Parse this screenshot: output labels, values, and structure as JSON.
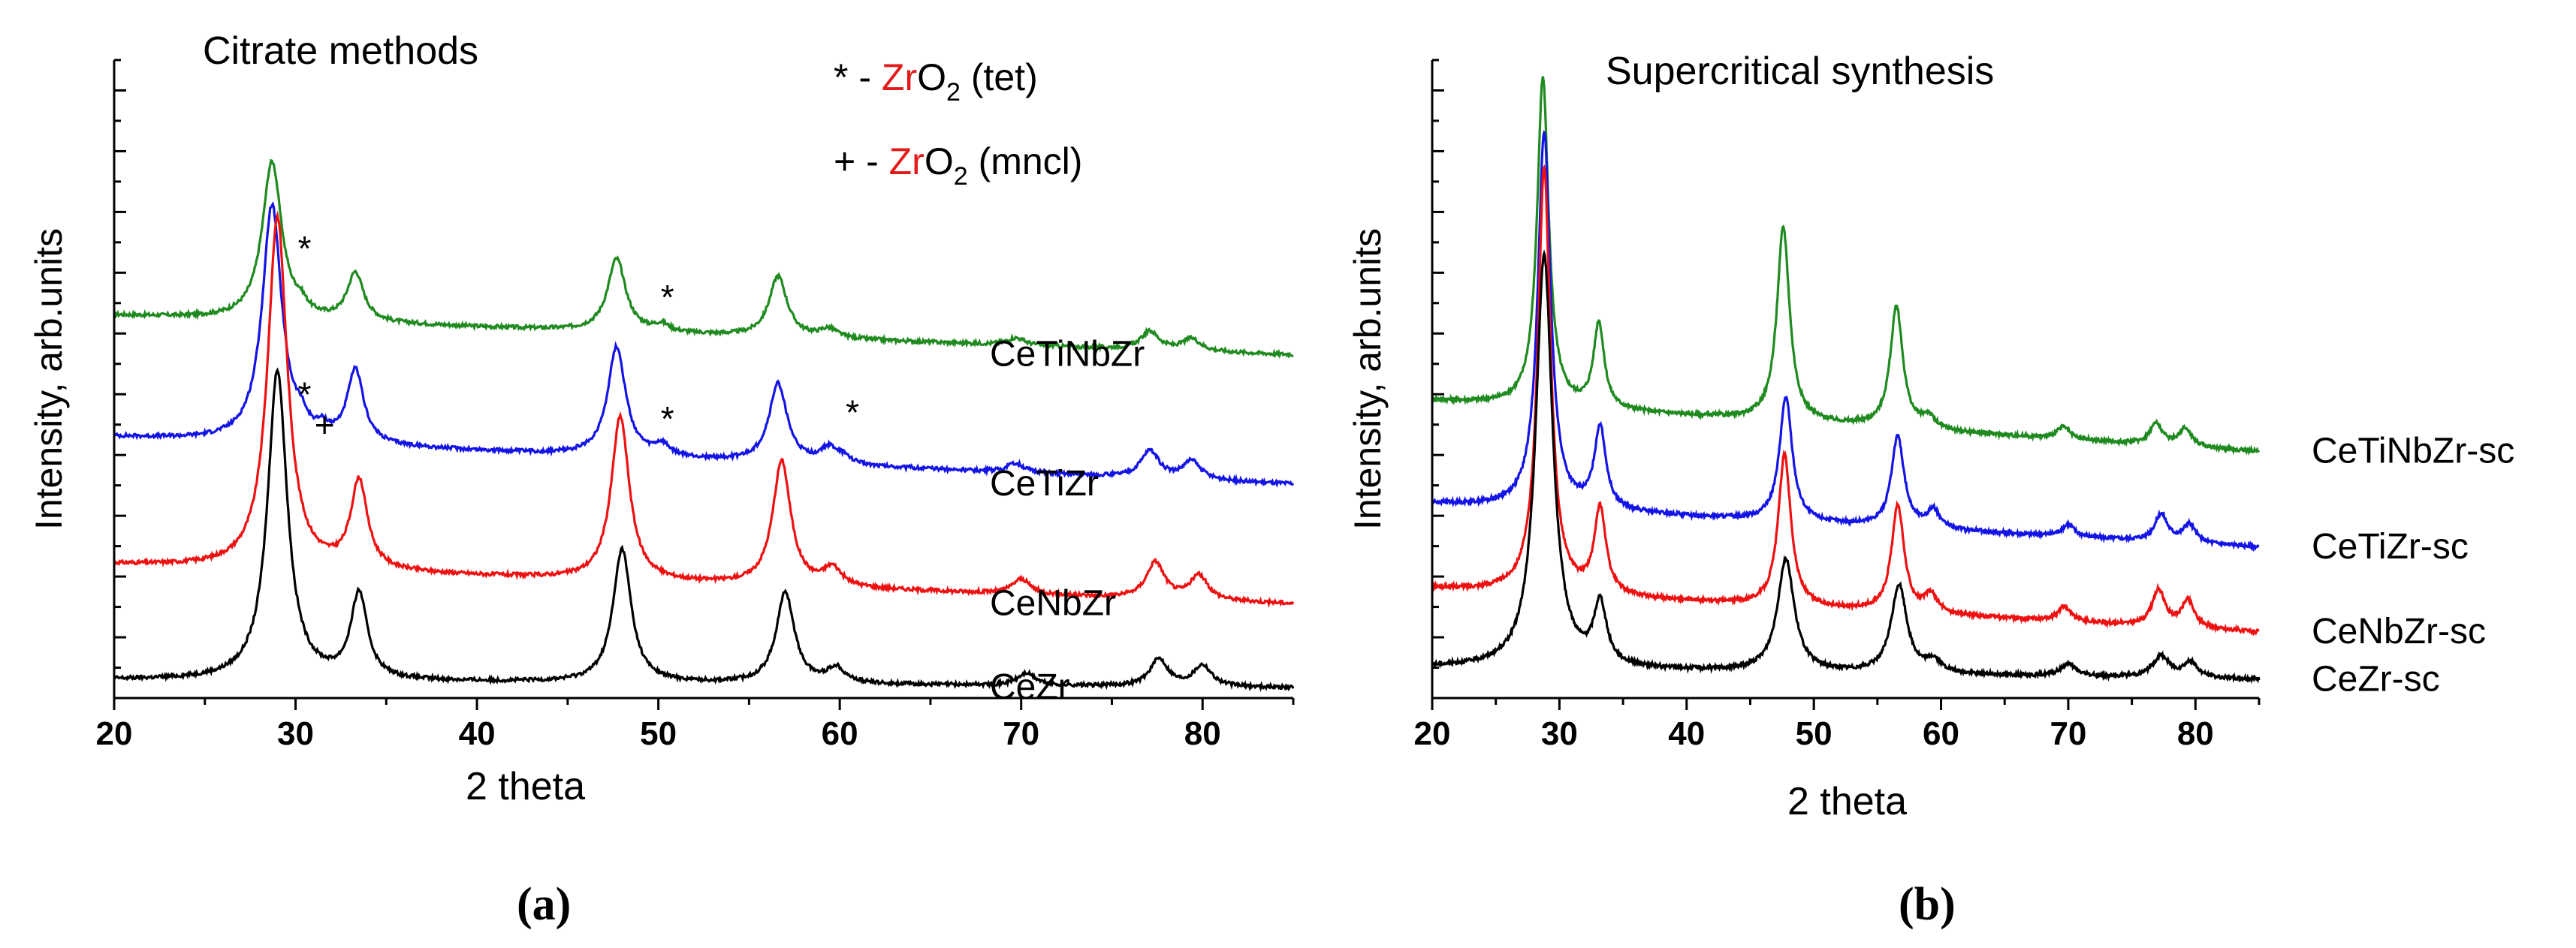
{
  "figure": {
    "panel_a_label": "(a)",
    "panel_b_label": "(b)"
  },
  "colors": {
    "CeTiNbZr": "#1f8a1f",
    "CeTiZr": "#1414e6",
    "CeNbZr": "#ee1111",
    "CeZr": "#000000",
    "axis": "#000000",
    "zr_highlight": "#e31a1c"
  },
  "legend": [
    {
      "symbol": "*",
      "sep": " - ",
      "zr": "Zr",
      "o": "O",
      "sub": "2",
      "phase": " (tet)"
    },
    {
      "symbol": "+",
      "sep": " - ",
      "zr": "Zr",
      "o": "O",
      "sub": "2",
      "phase": " (mncl)"
    }
  ],
  "chart_data": [
    {
      "type": "line",
      "panel": "a",
      "title": "Citrate methods",
      "xlabel": "2 theta",
      "ylabel": "Intensity, arb.units",
      "xlim": [
        20,
        85
      ],
      "ylim": [
        0,
        10.5
      ],
      "xticks": [
        20,
        30,
        40,
        50,
        60,
        70,
        80
      ],
      "yticks_labeled": false,
      "grid": false,
      "series": [
        {
          "name": "CeTiNbZr",
          "color": "#1f8a1f",
          "baseline": 6.3,
          "slope": -0.01,
          "peaks": [
            [
              28.7,
              2.6,
              0.65
            ],
            [
              33.3,
              0.8,
              0.55
            ],
            [
              47.7,
              1.2,
              0.6
            ],
            [
              56.6,
              1.0,
              0.6
            ],
            [
              59.4,
              0.15,
              0.6
            ],
            [
              69.7,
              0.12,
              0.6
            ],
            [
              77.1,
              0.3,
              0.6
            ],
            [
              79.4,
              0.2,
              0.6
            ],
            [
              30.3,
              0.15,
              0.4
            ],
            [
              50.2,
              0.12,
              0.5
            ]
          ]
        },
        {
          "name": "CeTiZr",
          "color": "#1414e6",
          "baseline": 4.3,
          "slope": -0.012,
          "peaks": [
            [
              28.7,
              3.9,
              0.65
            ],
            [
              33.3,
              1.2,
              0.55
            ],
            [
              47.7,
              1.8,
              0.6
            ],
            [
              56.6,
              1.3,
              0.6
            ],
            [
              59.4,
              0.25,
              0.6
            ],
            [
              69.7,
              0.15,
              0.6
            ],
            [
              77.1,
              0.45,
              0.6
            ],
            [
              79.4,
              0.3,
              0.6
            ],
            [
              30.3,
              0.2,
              0.4
            ],
            [
              31.5,
              0.15,
              0.4
            ],
            [
              50.2,
              0.18,
              0.5
            ],
            [
              60.2,
              0.1,
              0.5
            ]
          ]
        },
        {
          "name": "CeNbZr",
          "color": "#ee1111",
          "baseline": 2.2,
          "slope": -0.01,
          "peaks": [
            [
              29.0,
              5.8,
              0.65
            ],
            [
              33.5,
              1.45,
              0.55
            ],
            [
              47.9,
              2.7,
              0.6
            ],
            [
              56.8,
              2.05,
              0.6
            ],
            [
              59.6,
              0.3,
              0.6
            ],
            [
              70.0,
              0.25,
              0.6
            ],
            [
              77.4,
              0.6,
              0.6
            ],
            [
              79.8,
              0.4,
              0.6
            ]
          ]
        },
        {
          "name": "CeZr",
          "color": "#000000",
          "baseline": 0.3,
          "slope": -0.002,
          "peaks": [
            [
              29.0,
              5.1,
              0.65
            ],
            [
              33.5,
              1.4,
              0.55
            ],
            [
              48.0,
              2.2,
              0.6
            ],
            [
              57.0,
              1.5,
              0.6
            ],
            [
              59.8,
              0.25,
              0.6
            ],
            [
              70.3,
              0.2,
              0.6
            ],
            [
              77.6,
              0.45,
              0.6
            ],
            [
              80.0,
              0.35,
              0.6
            ]
          ]
        }
      ],
      "annotations": [
        {
          "text": "*",
          "x": 30.5,
          "y": 7.2
        },
        {
          "text": "*",
          "x": 50.5,
          "y": 6.4
        },
        {
          "text": "*",
          "x": 30.5,
          "y": 4.8
        },
        {
          "text": "+",
          "x": 31.6,
          "y": 4.3
        },
        {
          "text": "*",
          "x": 50.5,
          "y": 4.4
        },
        {
          "text": "*",
          "x": 60.7,
          "y": 4.5
        }
      ]
    },
    {
      "type": "line",
      "panel": "b",
      "title": "Supercritical synthesis",
      "xlabel": "2 theta",
      "ylabel": "Intensity, arb.units",
      "xlim": [
        20,
        85
      ],
      "ylim": [
        0,
        10.5
      ],
      "xticks": [
        20,
        30,
        40,
        50,
        60,
        70,
        80
      ],
      "yticks_labeled": false,
      "grid": false,
      "series": [
        {
          "name": "CeTiNbZr-sc",
          "color": "#1f8a1f",
          "baseline": 4.9,
          "slope": -0.013,
          "peaks": [
            [
              28.7,
              5.4,
              0.55
            ],
            [
              33.1,
              1.4,
              0.5
            ],
            [
              47.6,
              3.2,
              0.6
            ],
            [
              56.5,
              2.0,
              0.6
            ],
            [
              59.0,
              0.2,
              0.6
            ],
            [
              69.6,
              0.2,
              0.6
            ],
            [
              76.9,
              0.35,
              0.6
            ],
            [
              79.2,
              0.3,
              0.6
            ]
          ]
        },
        {
          "name": "CeTiZr-sc",
          "color": "#1414e6",
          "baseline": 3.2,
          "slope": -0.011,
          "peaks": [
            [
              28.8,
              6.2,
              0.6
            ],
            [
              33.2,
              1.35,
              0.55
            ],
            [
              47.8,
              2.05,
              0.6
            ],
            [
              56.6,
              1.5,
              0.6
            ],
            [
              59.4,
              0.3,
              0.6
            ],
            [
              70.0,
              0.2,
              0.6
            ],
            [
              77.3,
              0.45,
              0.6
            ],
            [
              79.5,
              0.3,
              0.6
            ]
          ]
        },
        {
          "name": "CeNbZr-sc",
          "color": "#ee1111",
          "baseline": 1.8,
          "slope": -0.011,
          "peaks": [
            [
              28.8,
              7.0,
              0.6
            ],
            [
              33.2,
              1.4,
              0.55
            ],
            [
              47.7,
              2.5,
              0.6
            ],
            [
              56.6,
              1.75,
              0.6
            ],
            [
              59.2,
              0.3,
              0.6
            ],
            [
              69.7,
              0.25,
              0.6
            ],
            [
              77.1,
              0.6,
              0.6
            ],
            [
              79.4,
              0.45,
              0.6
            ]
          ]
        },
        {
          "name": "CeZr-sc",
          "color": "#000000",
          "baseline": 0.5,
          "slope": -0.003,
          "peaks": [
            [
              28.8,
              6.8,
              0.8
            ],
            [
              33.2,
              1.0,
              0.6
            ],
            [
              47.8,
              1.85,
              0.8
            ],
            [
              56.7,
              1.45,
              0.75
            ],
            [
              59.4,
              0.2,
              0.7
            ],
            [
              70.0,
              0.2,
              0.7
            ],
            [
              77.3,
              0.35,
              0.8
            ],
            [
              79.6,
              0.25,
              0.7
            ]
          ]
        }
      ],
      "annotations": []
    }
  ]
}
